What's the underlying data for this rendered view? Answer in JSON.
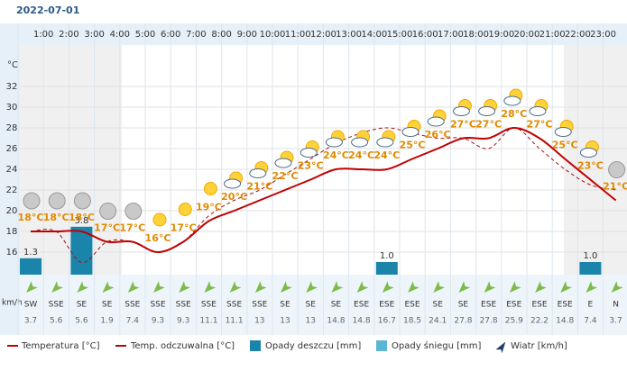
{
  "chart_data": {
    "type": "line",
    "date": "2022-07-01",
    "y_unit": "°C",
    "hour_labels": [
      "1:00",
      "2:00",
      "3:00",
      "4:00",
      "5:00",
      "6:00",
      "7:00",
      "8:00",
      "9:00",
      "10:00",
      "11:00",
      "12:00",
      "13:00",
      "14:00",
      "15:00",
      "16:00",
      "17:00",
      "18:00",
      "19:00",
      "20:00",
      "21:00",
      "22:00",
      "23:00"
    ],
    "ylim": [
      14,
      36
    ],
    "yticks": [
      16,
      18,
      20,
      22,
      24,
      26,
      28,
      30,
      32
    ],
    "series": [
      {
        "name": "Temperatura [°C]",
        "color": "#c00000",
        "dashed": false,
        "values": [
          18,
          18,
          18,
          17,
          17,
          16,
          17,
          19,
          20,
          21,
          22,
          23,
          24,
          24,
          24,
          25,
          26,
          27,
          27,
          28,
          27,
          25,
          23,
          21
        ],
        "value_labels": [
          "18°C",
          "18°C",
          "18°C",
          "17°C",
          "17°C",
          "16°C",
          "17°C",
          "19°C",
          "20°C",
          "21°C",
          "22°C",
          "23°C",
          "24°C",
          "24°C",
          "24°C",
          "25°C",
          "26°C",
          "27°C",
          "27°C",
          "28°C",
          "27°C",
          "25°C",
          "23°C",
          "21°C"
        ]
      },
      {
        "name": "Temp. odczuwalna [°C]",
        "color": "#a01010",
        "dashed": true,
        "values": [
          18,
          18,
          15,
          17,
          17,
          16,
          17,
          19.5,
          21,
          22,
          23.5,
          25,
          26.5,
          27.5,
          28,
          27.5,
          27,
          27,
          26,
          28,
          26,
          24,
          22.5,
          22
        ]
      }
    ],
    "precipitation": {
      "name": "Opady deszczu [mm]",
      "color": "#1a84ab",
      "values": [
        1.3,
        0,
        3.8,
        0,
        0,
        0,
        0,
        0,
        0,
        0,
        0,
        0,
        0,
        0,
        1.0,
        0,
        0,
        0,
        0,
        0,
        0,
        0,
        1.0,
        0
      ],
      "value_labels": [
        "1.3",
        null,
        "3.8",
        null,
        null,
        null,
        null,
        null,
        null,
        null,
        null,
        null,
        null,
        null,
        "1.0",
        null,
        null,
        null,
        null,
        null,
        null,
        null,
        "1.0",
        null
      ]
    },
    "snow": {
      "name": "Opady śniegu [mm]",
      "color": "#5bb6d2"
    },
    "wind": {
      "name": "Wiatr [km/h]",
      "unit": "km/h",
      "color": "#7dbb4a",
      "directions": [
        "SW",
        "SSE",
        "SE",
        "SE",
        "SSE",
        "SSE",
        "SSE",
        "SSE",
        "SSE",
        "SSE",
        "SE",
        "SE",
        "SE",
        "ESE",
        "ESE",
        "ESE",
        "SE",
        "SE",
        "ESE",
        "ESE",
        "ESE",
        "ESE",
        "E",
        "N"
      ],
      "speeds": [
        3.7,
        5.6,
        5.6,
        1.9,
        7.4,
        9.3,
        9.3,
        11.1,
        11.1,
        13,
        13,
        13,
        14.8,
        14.8,
        16.7,
        18.5,
        24.1,
        27.8,
        27.8,
        25.9,
        22.2,
        14.8,
        7.4,
        3.7
      ]
    }
  }
}
